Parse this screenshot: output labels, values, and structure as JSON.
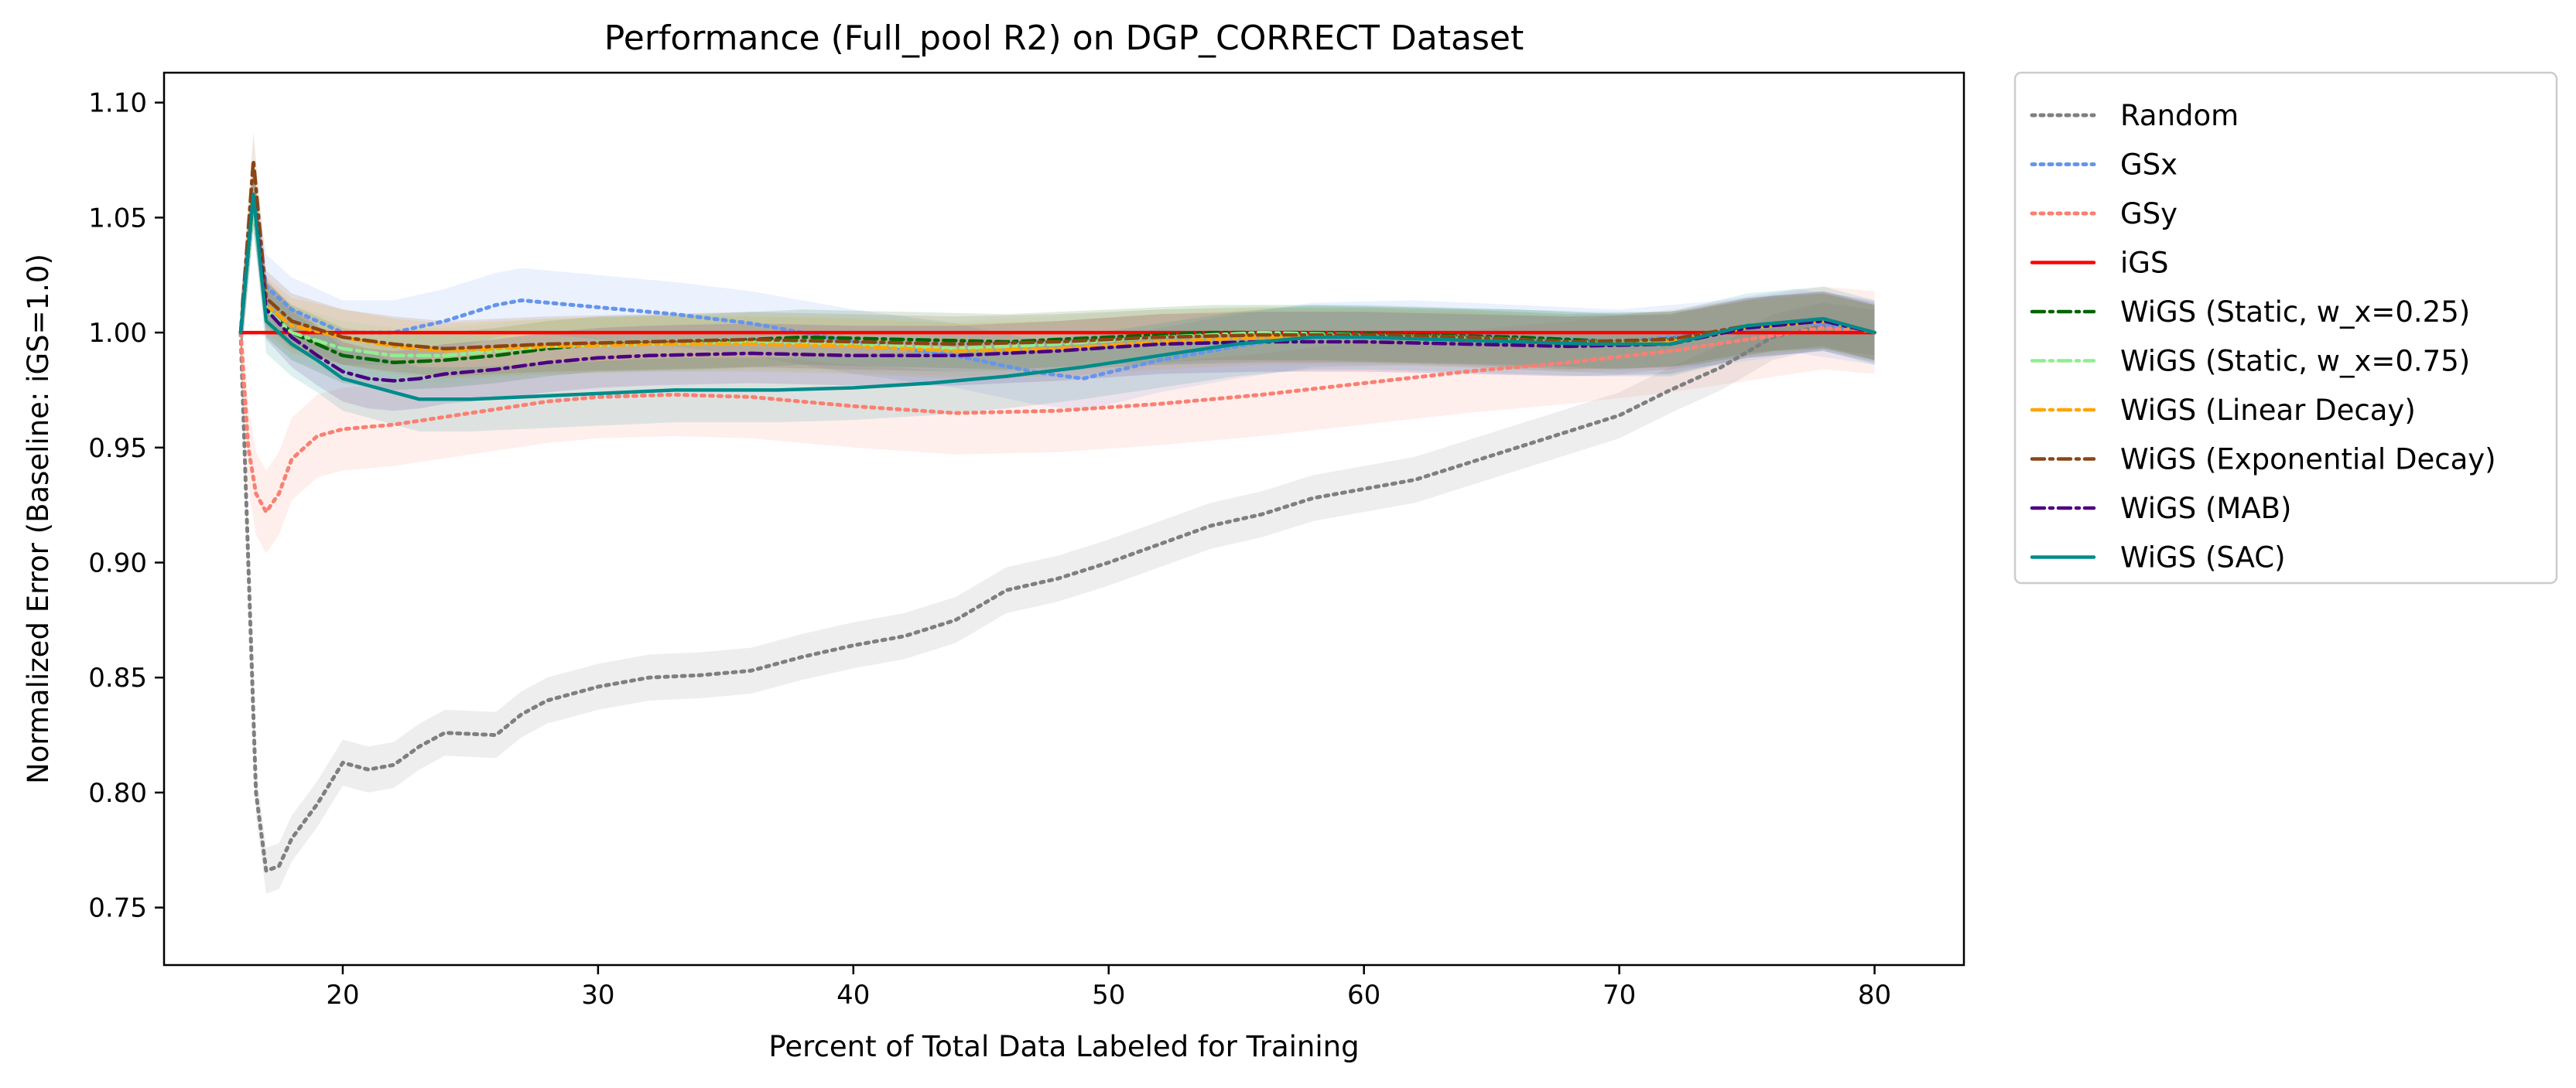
{
  "chart_data": {
    "type": "line",
    "title": "Performance (Full_pool R2) on DGP_CORRECT Dataset",
    "xlabel": "Percent of Total Data Labeled for Training",
    "ylabel": "Normalized Error (Baseline: iGS=1.0)",
    "xlim": [
      13,
      83.5
    ],
    "ylim": [
      0.725,
      1.113
    ],
    "x_ticks": [
      20,
      30,
      40,
      50,
      60,
      70,
      80
    ],
    "x_tick_labels": [
      "20",
      "30",
      "40",
      "50",
      "60",
      "70",
      "80"
    ],
    "y_ticks": [
      0.75,
      0.8,
      0.85,
      0.9,
      0.95,
      1.0,
      1.05,
      1.1
    ],
    "y_tick_labels": [
      "0.75",
      "0.80",
      "0.85",
      "0.90",
      "0.95",
      "1.00",
      "1.05",
      "1.10"
    ],
    "grid": false,
    "legend_position": "outside-right",
    "series": [
      {
        "name": "Random",
        "color": "#7f7f7f",
        "dash": "dotted",
        "band": 0.01,
        "points": [
          [
            16,
            1.0
          ],
          [
            16.3,
            0.9
          ],
          [
            16.6,
            0.8
          ],
          [
            17,
            0.766
          ],
          [
            17.5,
            0.768
          ],
          [
            18,
            0.78
          ],
          [
            19,
            0.795
          ],
          [
            20,
            0.813
          ],
          [
            21,
            0.81
          ],
          [
            22,
            0.812
          ],
          [
            23,
            0.82
          ],
          [
            24,
            0.826
          ],
          [
            26,
            0.825
          ],
          [
            27,
            0.834
          ],
          [
            28,
            0.84
          ],
          [
            30,
            0.846
          ],
          [
            32,
            0.85
          ],
          [
            34,
            0.851
          ],
          [
            36,
            0.853
          ],
          [
            38,
            0.859
          ],
          [
            40,
            0.864
          ],
          [
            42,
            0.868
          ],
          [
            44,
            0.875
          ],
          [
            46,
            0.888
          ],
          [
            48,
            0.893
          ],
          [
            50,
            0.9
          ],
          [
            52,
            0.908
          ],
          [
            54,
            0.916
          ],
          [
            56,
            0.921
          ],
          [
            58,
            0.928
          ],
          [
            60,
            0.932
          ],
          [
            62,
            0.936
          ],
          [
            64,
            0.943
          ],
          [
            66,
            0.95
          ],
          [
            68,
            0.957
          ],
          [
            70,
            0.964
          ],
          [
            72,
            0.975
          ],
          [
            74,
            0.985
          ],
          [
            76,
            0.998
          ],
          [
            78,
            1.003
          ],
          [
            80,
            1.0
          ]
        ]
      },
      {
        "name": "GSx",
        "color": "#6495ed",
        "dash": "dotted",
        "band": 0.014,
        "points": [
          [
            16,
            1.0
          ],
          [
            16.5,
            1.058
          ],
          [
            17,
            1.02
          ],
          [
            18,
            1.01
          ],
          [
            20,
            1.0
          ],
          [
            22,
            1.0
          ],
          [
            24,
            1.005
          ],
          [
            26,
            1.012
          ],
          [
            27,
            1.014
          ],
          [
            30,
            1.011
          ],
          [
            33,
            1.008
          ],
          [
            36,
            1.004
          ],
          [
            40,
            0.996
          ],
          [
            44,
            0.99
          ],
          [
            47,
            0.983
          ],
          [
            49,
            0.98
          ],
          [
            52,
            0.988
          ],
          [
            55,
            0.994
          ],
          [
            58,
            0.999
          ],
          [
            62,
            1.0
          ],
          [
            66,
            0.998
          ],
          [
            70,
            0.996
          ],
          [
            74,
            1.0
          ],
          [
            77,
            1.005
          ],
          [
            80,
            1.0
          ]
        ]
      },
      {
        "name": "GSy",
        "color": "#fa8072",
        "dash": "dotted",
        "band": 0.018,
        "points": [
          [
            16,
            1.0
          ],
          [
            16.3,
            0.95
          ],
          [
            16.6,
            0.93
          ],
          [
            17,
            0.922
          ],
          [
            17.5,
            0.93
          ],
          [
            18,
            0.945
          ],
          [
            19,
            0.955
          ],
          [
            20,
            0.958
          ],
          [
            22,
            0.96
          ],
          [
            25,
            0.965
          ],
          [
            28,
            0.97
          ],
          [
            30,
            0.972
          ],
          [
            33,
            0.973
          ],
          [
            36,
            0.972
          ],
          [
            40,
            0.968
          ],
          [
            44,
            0.965
          ],
          [
            48,
            0.966
          ],
          [
            52,
            0.969
          ],
          [
            56,
            0.973
          ],
          [
            60,
            0.978
          ],
          [
            64,
            0.983
          ],
          [
            68,
            0.987
          ],
          [
            72,
            0.992
          ],
          [
            75,
            0.997
          ],
          [
            78,
            1.002
          ],
          [
            80,
            1.0
          ]
        ]
      },
      {
        "name": "iGS",
        "color": "#ff0000",
        "dash": "solid",
        "band": 0,
        "points": [
          [
            16,
            1.0
          ],
          [
            80,
            1.0
          ]
        ]
      },
      {
        "name": "WiGS (Static, w_x=0.25)",
        "color": "#006400",
        "dash": "dashdot",
        "band": 0.012,
        "points": [
          [
            16,
            1.0
          ],
          [
            16.5,
            1.06
          ],
          [
            17,
            1.01
          ],
          [
            18,
            1.0
          ],
          [
            20,
            0.99
          ],
          [
            22,
            0.987
          ],
          [
            24,
            0.988
          ],
          [
            26,
            0.99
          ],
          [
            28,
            0.993
          ],
          [
            30,
            0.995
          ],
          [
            34,
            0.996
          ],
          [
            38,
            0.998
          ],
          [
            42,
            0.997
          ],
          [
            46,
            0.996
          ],
          [
            50,
            0.998
          ],
          [
            54,
            1.0
          ],
          [
            58,
            1.0
          ],
          [
            62,
            0.999
          ],
          [
            66,
            0.998
          ],
          [
            70,
            0.996
          ],
          [
            73,
            0.998
          ],
          [
            76,
            1.004
          ],
          [
            78,
            1.005
          ],
          [
            80,
            1.0
          ]
        ]
      },
      {
        "name": "WiGS (Static, w_x=0.75)",
        "color": "#90ee90",
        "dash": "dashdot",
        "band": 0.012,
        "points": [
          [
            16,
            1.0
          ],
          [
            16.5,
            1.055
          ],
          [
            17,
            1.01
          ],
          [
            18,
            1.0
          ],
          [
            20,
            0.993
          ],
          [
            22,
            0.99
          ],
          [
            24,
            0.99
          ],
          [
            26,
            0.992
          ],
          [
            28,
            0.994
          ],
          [
            32,
            0.995
          ],
          [
            36,
            0.996
          ],
          [
            40,
            0.995
          ],
          [
            44,
            0.993
          ],
          [
            48,
            0.995
          ],
          [
            52,
            0.998
          ],
          [
            56,
            1.0
          ],
          [
            60,
            0.999
          ],
          [
            64,
            0.998
          ],
          [
            68,
            0.996
          ],
          [
            72,
            0.997
          ],
          [
            75,
            1.002
          ],
          [
            78,
            1.005
          ],
          [
            80,
            1.0
          ]
        ]
      },
      {
        "name": "WiGS (Linear Decay)",
        "color": "#ffa500",
        "dash": "dashdot",
        "band": 0.012,
        "points": [
          [
            16,
            1.0
          ],
          [
            16.5,
            1.06
          ],
          [
            17,
            1.012
          ],
          [
            18,
            1.003
          ],
          [
            20,
            0.998
          ],
          [
            22,
            0.994
          ],
          [
            24,
            0.992
          ],
          [
            26,
            0.993
          ],
          [
            28,
            0.994
          ],
          [
            32,
            0.995
          ],
          [
            36,
            0.995
          ],
          [
            40,
            0.994
          ],
          [
            44,
            0.992
          ],
          [
            48,
            0.993
          ],
          [
            52,
            0.996
          ],
          [
            56,
            0.998
          ],
          [
            60,
            0.998
          ],
          [
            64,
            0.997
          ],
          [
            68,
            0.995
          ],
          [
            72,
            0.996
          ],
          [
            75,
            1.002
          ],
          [
            78,
            1.005
          ],
          [
            80,
            1.0
          ]
        ]
      },
      {
        "name": "WiGS (Exponential Decay)",
        "color": "#8b4513",
        "dash": "dashdot",
        "band": 0.012,
        "points": [
          [
            16,
            1.0
          ],
          [
            16.5,
            1.075
          ],
          [
            17,
            1.015
          ],
          [
            18,
            1.005
          ],
          [
            20,
            0.998
          ],
          [
            22,
            0.995
          ],
          [
            24,
            0.993
          ],
          [
            26,
            0.994
          ],
          [
            28,
            0.995
          ],
          [
            32,
            0.996
          ],
          [
            36,
            0.997
          ],
          [
            40,
            0.996
          ],
          [
            44,
            0.995
          ],
          [
            48,
            0.996
          ],
          [
            52,
            0.998
          ],
          [
            56,
            0.999
          ],
          [
            60,
            0.999
          ],
          [
            64,
            0.998
          ],
          [
            68,
            0.996
          ],
          [
            72,
            0.997
          ],
          [
            75,
            1.003
          ],
          [
            78,
            1.006
          ],
          [
            80,
            1.0
          ]
        ]
      },
      {
        "name": "WiGS (MAB)",
        "color": "#4b0082",
        "dash": "dashdot",
        "band": 0.013,
        "points": [
          [
            16,
            1.0
          ],
          [
            16.5,
            1.06
          ],
          [
            17,
            1.01
          ],
          [
            18,
            0.998
          ],
          [
            19,
            0.99
          ],
          [
            20,
            0.983
          ],
          [
            21,
            0.98
          ],
          [
            22,
            0.979
          ],
          [
            23,
            0.98
          ],
          [
            24,
            0.982
          ],
          [
            26,
            0.984
          ],
          [
            28,
            0.987
          ],
          [
            30,
            0.989
          ],
          [
            32,
            0.99
          ],
          [
            36,
            0.991
          ],
          [
            40,
            0.99
          ],
          [
            44,
            0.99
          ],
          [
            48,
            0.992
          ],
          [
            52,
            0.995
          ],
          [
            56,
            0.996
          ],
          [
            60,
            0.996
          ],
          [
            64,
            0.995
          ],
          [
            68,
            0.994
          ],
          [
            72,
            0.995
          ],
          [
            75,
            1.002
          ],
          [
            78,
            1.005
          ],
          [
            80,
            1.0
          ]
        ]
      },
      {
        "name": "WiGS (SAC)",
        "color": "#008b8b",
        "dash": "solid",
        "band": 0.014,
        "points": [
          [
            16,
            1.0
          ],
          [
            16.5,
            1.06
          ],
          [
            17,
            1.005
          ],
          [
            18,
            0.995
          ],
          [
            19,
            0.988
          ],
          [
            20,
            0.98
          ],
          [
            21,
            0.977
          ],
          [
            22,
            0.974
          ],
          [
            23,
            0.971
          ],
          [
            25,
            0.971
          ],
          [
            27,
            0.972
          ],
          [
            29,
            0.973
          ],
          [
            31,
            0.974
          ],
          [
            33,
            0.975
          ],
          [
            35,
            0.975
          ],
          [
            37,
            0.975
          ],
          [
            40,
            0.976
          ],
          [
            43,
            0.978
          ],
          [
            46,
            0.981
          ],
          [
            49,
            0.985
          ],
          [
            52,
            0.99
          ],
          [
            55,
            0.995
          ],
          [
            58,
            0.998
          ],
          [
            60,
            0.998
          ],
          [
            63,
            0.997
          ],
          [
            66,
            0.996
          ],
          [
            69,
            0.995
          ],
          [
            72,
            0.995
          ],
          [
            75,
            1.003
          ],
          [
            78,
            1.006
          ],
          [
            80,
            1.0
          ]
        ]
      }
    ]
  }
}
